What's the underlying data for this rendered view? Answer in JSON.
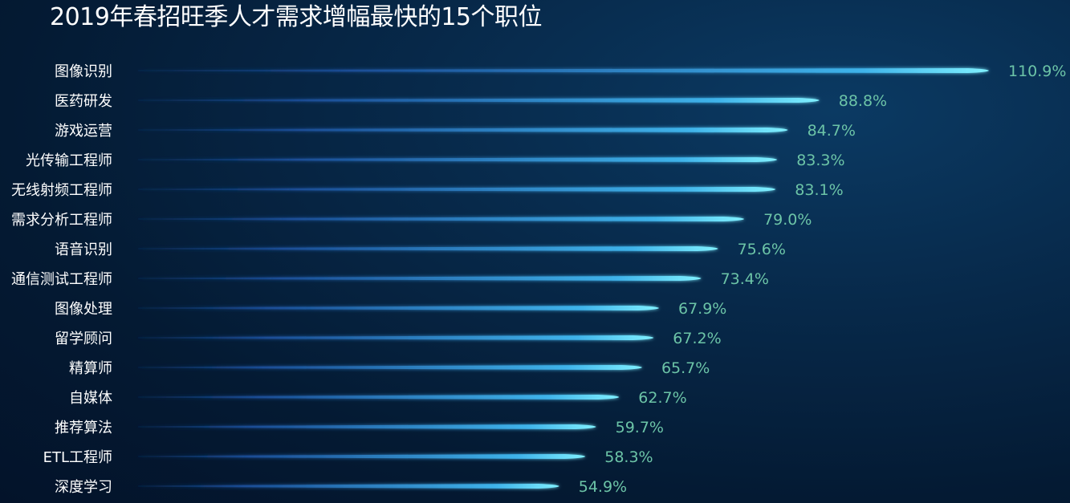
{
  "chart_data": {
    "type": "bar",
    "orientation": "horizontal",
    "title": "2019年春招旺季人才需求增幅最快的15个职位",
    "categories": [
      "图像识别",
      "医药研发",
      "游戏运营",
      "光传输工程师",
      "无线射频工程师",
      "需求分析工程师",
      "语音识别",
      "通信测试工程师",
      "图像处理",
      "留学顾问",
      "精算师",
      "自媒体",
      "推荐算法",
      "ETL工程师",
      "深度学习"
    ],
    "values": [
      110.9,
      88.8,
      84.7,
      83.3,
      83.1,
      79.0,
      75.6,
      73.4,
      67.9,
      67.2,
      65.7,
      62.7,
      59.7,
      58.3,
      54.9
    ],
    "value_labels": [
      "110.9%",
      "88.8%",
      "84.7%",
      "83.3%",
      "83.1%",
      "79.0%",
      "75.6%",
      "73.4%",
      "67.9%",
      "67.2%",
      "65.7%",
      "62.7%",
      "59.7%",
      "58.3%",
      "54.9%"
    ],
    "unit": "%",
    "xlim": [
      0,
      110.9
    ],
    "grid": false,
    "legend": "none",
    "colors": {
      "bar_start": "#1b4f9a",
      "bar_end": "#5fe0f5",
      "value_text": "#6cc4a7",
      "label_text": "#ffffff",
      "title_text": "#ffffff"
    }
  }
}
